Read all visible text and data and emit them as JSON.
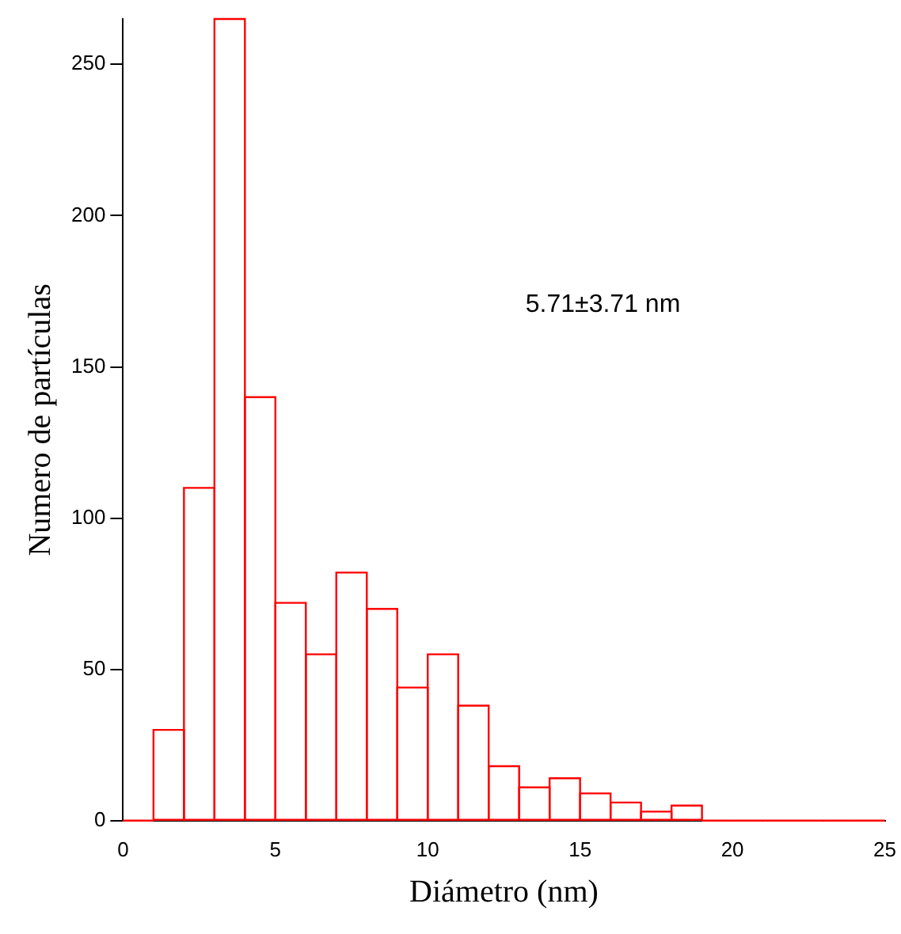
{
  "chart_data": {
    "type": "histogram",
    "xlabel": "Diámetro (nm)",
    "ylabel": "Numero de partículas",
    "annotations": [
      {
        "text": "5.71±3.71 nm"
      }
    ],
    "bins": [
      0,
      1,
      2,
      3,
      4,
      5,
      6,
      7,
      8,
      9,
      10,
      11,
      12,
      13,
      14,
      15,
      16,
      17,
      18,
      19,
      20,
      21,
      22,
      23,
      24,
      25
    ],
    "values": [
      0,
      30,
      110,
      265,
      140,
      72,
      55,
      82,
      70,
      44,
      55,
      38,
      18,
      11,
      14,
      9,
      6,
      3,
      5,
      0,
      0,
      0,
      0,
      0,
      0
    ],
    "color": "#ff0000",
    "xlim": [
      0,
      25
    ],
    "xticks": [
      0,
      5,
      10,
      15,
      20,
      25
    ],
    "ylim": [
      0,
      265
    ],
    "yticks": [
      0,
      50,
      100,
      150,
      200,
      250
    ],
    "grid": false,
    "legend": false
  }
}
